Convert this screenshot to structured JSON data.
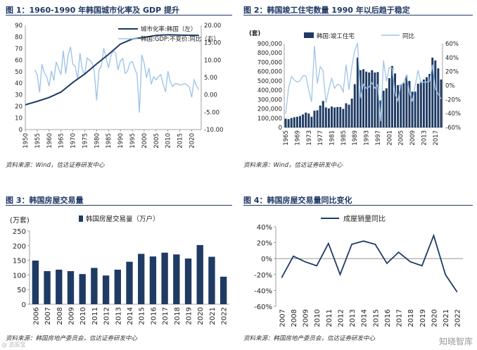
{
  "page": {
    "watermark": "知晓智库",
    "corner_mark": "@ 选股宝"
  },
  "colors": {
    "navy": "#1f3b64",
    "light_blue": "#9fc5e8",
    "title": "#1f3864"
  },
  "chart_data": [
    {
      "id": "fig1",
      "type": "line",
      "title": "图 1：1960-1990 年韩国城市化率及 GDP 提升",
      "source": "资料来源：Wind，信达证券研发中心",
      "x_ticks": [
        "1950",
        "1955",
        "1960",
        "1965",
        "1970",
        "1975",
        "1980",
        "1985",
        "1990",
        "1995",
        "2000",
        "2005",
        "2010",
        "2015",
        "2020"
      ],
      "xlim": [
        1950,
        2024
      ],
      "y_left": {
        "lim": [
          0,
          90
        ],
        "ticks": [
          "0",
          "10",
          "20",
          "30",
          "40",
          "50",
          "60",
          "70",
          "80",
          "90"
        ]
      },
      "y_right": {
        "lim": [
          -10,
          20
        ],
        "ticks": [
          "-10.00",
          "-5.00",
          "0.00",
          "5.00",
          "10.00",
          "15.00",
          "20.00"
        ]
      },
      "legend": [
        "城市化率:韩国（左）",
        "韩国:GDP:不变价:同比（右）"
      ],
      "series": [
        {
          "name": "城市化率:韩国（左）",
          "axis": "left",
          "x": [
            1950,
            1955,
            1960,
            1965,
            1970,
            1975,
            1980,
            1985,
            1990,
            1995,
            2000,
            2005,
            2010,
            2015,
            2020,
            2023
          ],
          "y": [
            21.4,
            24.4,
            27.7,
            32.4,
            40.7,
            48.0,
            56.7,
            64.9,
            73.8,
            78.2,
            79.6,
            81.3,
            81.9,
            81.6,
            81.4,
            81.4
          ]
        },
        {
          "name": "韩国:GDP:不变价:同比（右）",
          "axis": "right",
          "x": [
            1954,
            1955,
            1956,
            1957,
            1958,
            1959,
            1960,
            1961,
            1962,
            1963,
            1964,
            1965,
            1966,
            1967,
            1968,
            1969,
            1970,
            1971,
            1972,
            1973,
            1974,
            1975,
            1976,
            1977,
            1978,
            1979,
            1980,
            1981,
            1982,
            1983,
            1984,
            1985,
            1986,
            1987,
            1988,
            1989,
            1990,
            1991,
            1992,
            1993,
            1994,
            1995,
            1996,
            1997,
            1998,
            1999,
            2000,
            2001,
            2002,
            2003,
            2004,
            2005,
            2006,
            2007,
            2008,
            2009,
            2010,
            2011,
            2012,
            2013,
            2014,
            2015,
            2016,
            2017,
            2018,
            2019,
            2020,
            2021,
            2022,
            2023
          ],
          "y": [
            7.2,
            5.8,
            0.7,
            8.8,
            6.3,
            5.2,
            2.5,
            6.9,
            4.1,
            9.5,
            7.6,
            5.8,
            12.7,
            6.1,
            11.3,
            13.8,
            8.8,
            8.2,
            4.5,
            12.0,
            7.2,
            5.9,
            10.6,
            10.0,
            9.3,
            6.8,
            -1.6,
            7.2,
            8.3,
            13.4,
            10.6,
            7.8,
            11.3,
            12.7,
            12.0,
            7.1,
            9.8,
            10.4,
            6.2,
            6.8,
            9.2,
            9.6,
            7.6,
            5.9,
            -5.1,
            11.5,
            9.1,
            4.9,
            7.7,
            3.1,
            5.2,
            4.3,
            5.3,
            5.8,
            3.0,
            0.8,
            6.8,
            3.7,
            2.4,
            3.2,
            3.2,
            2.8,
            2.9,
            3.2,
            2.9,
            2.2,
            -0.7,
            4.3,
            2.6,
            1.4
          ]
        }
      ]
    },
    {
      "id": "fig2",
      "type": "bar+line",
      "title": "图 2：韩国竣工住宅数量 1990 年以后趋于稳定",
      "source": "资料来源：Wind，信达证券研发中心",
      "unit_left": "(套)",
      "x_ticks": [
        "1965",
        "1969",
        "1973",
        "1977",
        "1981",
        "1985",
        "1989",
        "1993",
        "1997",
        "2001",
        "2005",
        "2009",
        "2013",
        "2017"
      ],
      "years": [
        1965,
        1966,
        1967,
        1968,
        1969,
        1970,
        1971,
        1972,
        1973,
        1974,
        1975,
        1976,
        1977,
        1978,
        1979,
        1980,
        1981,
        1982,
        1983,
        1984,
        1985,
        1986,
        1987,
        1988,
        1989,
        1990,
        1991,
        1992,
        1993,
        1994,
        1995,
        1996,
        1997,
        1998,
        1999,
        2000,
        2001,
        2002,
        2003,
        2004,
        2005,
        2006,
        2007,
        2008,
        2009,
        2010,
        2011,
        2012,
        2013,
        2014,
        2015,
        2016,
        2017,
        2018,
        2019
      ],
      "y_left": {
        "lim": [
          0,
          900000
        ],
        "ticks": [
          "0",
          "100,000",
          "200,000",
          "300,000",
          "400,000",
          "500,000",
          "600,000",
          "700,000",
          "800,000",
          "900,000"
        ]
      },
      "y_right": {
        "lim": [
          -60,
          60
        ],
        "ticks": [
          "-60%",
          "-40%",
          "-20%",
          "0%",
          "20%",
          "40%",
          "60%"
        ]
      },
      "legend": [
        "韩国:竣工住宅",
        "同比"
      ],
      "series": [
        {
          "name": "韩国:竣工住宅",
          "axis": "left",
          "values": [
            94000,
            90000,
            102000,
            110000,
            115000,
            123000,
            140000,
            160000,
            150000,
            115000,
            180000,
            185000,
            235000,
            285000,
            215000,
            205000,
            225000,
            215000,
            220000,
            220000,
            200000,
            260000,
            245000,
            310000,
            465000,
            750000,
            615000,
            625000,
            600000,
            590000,
            615000,
            590000,
            595000,
            290000,
            395000,
            420000,
            530000,
            660000,
            580000,
            455000,
            460000,
            480000,
            555000,
            500000,
            385000,
            385000,
            470000,
            490000,
            515000,
            540000,
            575000,
            750000,
            720000,
            635000,
            515000
          ]
        },
        {
          "name": "同比",
          "axis": "right",
          "values": [
            -40,
            -4,
            13,
            8,
            5,
            7,
            14,
            14,
            -6,
            -23,
            57,
            3,
            27,
            21,
            -25,
            -5,
            10,
            -4,
            2,
            0,
            -9,
            30,
            -6,
            27,
            50,
            61,
            -18,
            2,
            -4,
            -2,
            4,
            -4,
            1,
            -51,
            36,
            6,
            26,
            25,
            -12,
            -22,
            1,
            4,
            16,
            -10,
            -23,
            0,
            22,
            4,
            5,
            5,
            6,
            30,
            -4,
            -12,
            -19
          ]
        }
      ]
    },
    {
      "id": "fig3",
      "type": "bar",
      "title": "图 3：韩国房屋交易量",
      "source": "资料来源：韩国房地产委员会，信达证券研发中心",
      "unit_left": "(万套)",
      "legend": [
        "韩国房屋交易量（万户）"
      ],
      "categories": [
        "2006",
        "2007",
        "2008",
        "2009",
        "2010",
        "2011",
        "2012",
        "2013",
        "2014",
        "2015",
        "2016",
        "2017",
        "2018",
        "2019",
        "2020",
        "2021",
        "2022"
      ],
      "values": [
        149,
        113,
        118,
        113,
        103,
        124,
        98,
        118,
        145,
        172,
        163,
        176,
        170,
        156,
        202,
        162,
        94
      ],
      "y": {
        "lim": [
          0,
          250
        ],
        "ticks": [
          "0",
          "50",
          "100",
          "150",
          "200",
          "250"
        ]
      }
    },
    {
      "id": "fig4",
      "type": "line",
      "title": "图 4：韩国房屋交易量同比变化",
      "source": "资料来源：韩国房地产委员会，信达证券研发中心",
      "legend": [
        "成屋销量同比"
      ],
      "categories": [
        "2007",
        "2008",
        "2009",
        "2010",
        "2011",
        "2012",
        "2013",
        "2014",
        "2015",
        "2016",
        "2017",
        "2018",
        "2019",
        "2020",
        "2021",
        "2022"
      ],
      "values": [
        -24,
        3,
        -4,
        -9,
        19,
        -20,
        18,
        22,
        18,
        -6,
        8,
        -4,
        -9,
        29,
        -20,
        -42
      ],
      "y": {
        "lim": [
          -60,
          40
        ],
        "ticks": [
          "-60%",
          "-40%",
          "-20%",
          "0%",
          "20%",
          "40%"
        ]
      }
    }
  ]
}
